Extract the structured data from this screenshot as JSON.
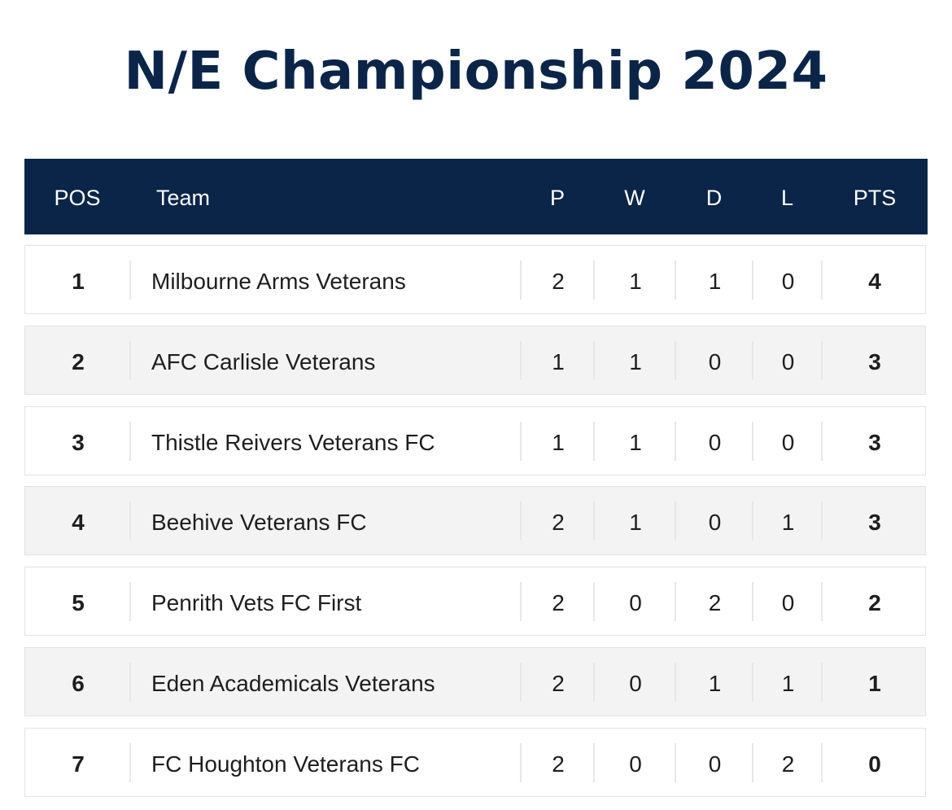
{
  "title": "N/E Championship 2024",
  "header": {
    "pos": "POS",
    "team": "Team",
    "p": "P",
    "w": "W",
    "d": "D",
    "l": "L",
    "pts": "PTS"
  },
  "rows": [
    {
      "pos": "1",
      "team": "Milbourne Arms Veterans",
      "p": "2",
      "w": "1",
      "d": "1",
      "l": "0",
      "pts": "4"
    },
    {
      "pos": "2",
      "team": "AFC Carlisle Veterans",
      "p": "1",
      "w": "1",
      "d": "0",
      "l": "0",
      "pts": "3"
    },
    {
      "pos": "3",
      "team": "Thistle Reivers Veterans FC",
      "p": "1",
      "w": "1",
      "d": "0",
      "l": "0",
      "pts": "3"
    },
    {
      "pos": "4",
      "team": "Beehive Veterans FC",
      "p": "2",
      "w": "1",
      "d": "0",
      "l": "1",
      "pts": "3"
    },
    {
      "pos": "5",
      "team": "Penrith Vets FC First",
      "p": "2",
      "w": "0",
      "d": "2",
      "l": "0",
      "pts": "2"
    },
    {
      "pos": "6",
      "team": "Eden Academicals Veterans",
      "p": "2",
      "w": "0",
      "d": "1",
      "l": "1",
      "pts": "1"
    },
    {
      "pos": "7",
      "team": "FC Houghton Veterans FC",
      "p": "2",
      "w": "0",
      "d": "0",
      "l": "2",
      "pts": "0"
    }
  ],
  "colors": {
    "header_bg": "#0a2548",
    "title": "#0a2548",
    "row_alt_bg": "#f3f3f3"
  }
}
